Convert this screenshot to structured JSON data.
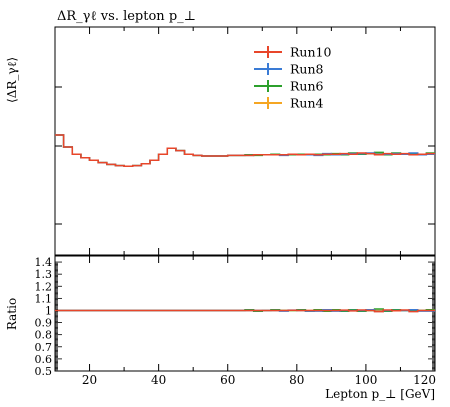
{
  "chart_data": {
    "type": "line",
    "title": "ΔR_γℓ vs. lepton p_⊥",
    "xlabel": "Lepton p_⊥ [GeV]",
    "ylabel": "⟨ΔR_γℓ⟩",
    "ratio_ylabel": "Ratio",
    "xlim": [
      10,
      120
    ],
    "x_ticks": [
      20,
      40,
      60,
      80,
      100,
      120
    ],
    "ratio_ylim": [
      0.5,
      1.45
    ],
    "ratio_ticks": [
      "1.4",
      "1.3",
      "1.2",
      "1.1",
      "1",
      "0.9",
      "0.8",
      "0.7",
      "0.6",
      "0.5"
    ],
    "legend_position": "top-right",
    "bin_edges": [
      10,
      12.5,
      15,
      17.5,
      20,
      22.5,
      25,
      27.5,
      30,
      32.5,
      35,
      37.5,
      40,
      42.5,
      45,
      47.5,
      50,
      52.5,
      55,
      57.5,
      60,
      62.5,
      65,
      67.5,
      70,
      72.5,
      75,
      77.5,
      80,
      82.5,
      85,
      87.5,
      90,
      92.5,
      95,
      97.5,
      100,
      102.5,
      105,
      107.5,
      110,
      112.5,
      115,
      117.5,
      120
    ],
    "series": [
      {
        "name": "Run10",
        "color": "#e8462a",
        "values": [
          1.0,
          0.9,
          0.84,
          0.81,
          0.79,
          0.77,
          0.755,
          0.745,
          0.74,
          0.745,
          0.76,
          0.79,
          0.84,
          0.89,
          0.87,
          0.84,
          0.83,
          0.825,
          0.825,
          0.825,
          0.83,
          0.83,
          0.83,
          0.835,
          0.835,
          0.835,
          0.835,
          0.84,
          0.835,
          0.84,
          0.835,
          0.84,
          0.84,
          0.845,
          0.84,
          0.85,
          0.845,
          0.835,
          0.845,
          0.84,
          0.845,
          0.835,
          0.84,
          0.845
        ]
      },
      {
        "name": "Run8",
        "color": "#3a7bd5",
        "values": [
          1.0,
          0.9,
          0.84,
          0.81,
          0.79,
          0.77,
          0.755,
          0.745,
          0.74,
          0.745,
          0.76,
          0.79,
          0.84,
          0.89,
          0.87,
          0.84,
          0.83,
          0.825,
          0.825,
          0.825,
          0.83,
          0.83,
          0.83,
          0.835,
          0.835,
          0.835,
          0.83,
          0.84,
          0.835,
          0.835,
          0.83,
          0.845,
          0.835,
          0.84,
          0.845,
          0.845,
          0.85,
          0.84,
          0.84,
          0.845,
          0.84,
          0.85,
          0.835,
          0.84
        ]
      },
      {
        "name": "Run6",
        "color": "#2ca02c",
        "values": [
          1.0,
          0.9,
          0.84,
          0.81,
          0.79,
          0.77,
          0.755,
          0.745,
          0.74,
          0.745,
          0.76,
          0.79,
          0.84,
          0.89,
          0.87,
          0.84,
          0.83,
          0.825,
          0.825,
          0.825,
          0.83,
          0.83,
          0.835,
          0.83,
          0.835,
          0.84,
          0.835,
          0.835,
          0.84,
          0.835,
          0.84,
          0.835,
          0.845,
          0.835,
          0.85,
          0.84,
          0.845,
          0.855,
          0.835,
          0.85,
          0.84,
          0.845,
          0.84,
          0.85
        ]
      },
      {
        "name": "Run4",
        "color": "#f5a623",
        "values": [
          1.0,
          0.9,
          0.84,
          0.81,
          0.79,
          0.77,
          0.755,
          0.745,
          0.74,
          0.745,
          0.76,
          0.79,
          0.84,
          0.89,
          0.87,
          0.84,
          0.83,
          0.825,
          0.825,
          0.825,
          0.83,
          0.83,
          0.83,
          0.835,
          0.835,
          0.835,
          0.835,
          0.835,
          0.835,
          0.84,
          0.835,
          0.84,
          0.84,
          0.84,
          0.845,
          0.845,
          0.845,
          0.845,
          0.84,
          0.845,
          0.84,
          0.845,
          0.84,
          0.845
        ]
      }
    ],
    "ratio_series": [
      {
        "name": "Run10",
        "color": "#e8462a",
        "values": [
          1,
          1,
          1,
          1,
          1,
          1,
          1,
          1,
          1,
          1,
          1,
          1,
          1,
          1,
          1,
          1,
          1,
          1,
          1,
          1,
          1,
          1,
          1,
          1,
          1,
          1,
          1,
          1.002,
          1,
          1,
          1,
          1,
          1,
          1.003,
          0.997,
          1.004,
          1,
          0.99,
          1.004,
          0.998,
          1.004,
          0.99,
          1,
          1
        ]
      },
      {
        "name": "Run8",
        "color": "#3a7bd5",
        "values": [
          1,
          1,
          1,
          1,
          1,
          1,
          1,
          1,
          1,
          1,
          1,
          1,
          1,
          1,
          1,
          1,
          1,
          1,
          1,
          1,
          1,
          1,
          1,
          1,
          1,
          1,
          0.995,
          1.003,
          1,
          0.995,
          0.995,
          1.006,
          0.995,
          1,
          1,
          1,
          1.006,
          0.993,
          1,
          1,
          1,
          1.006,
          0.995,
          0.995
        ]
      },
      {
        "name": "Run6",
        "color": "#2ca02c",
        "values": [
          1,
          1,
          1,
          1,
          1,
          1,
          1,
          1,
          1,
          1,
          1,
          1,
          1,
          1,
          1,
          1,
          1,
          1,
          1,
          1,
          1,
          1,
          1.006,
          0.994,
          1,
          1.006,
          1,
          1,
          1.006,
          0.995,
          1.006,
          0.994,
          1.006,
          0.994,
          1.006,
          0.994,
          1,
          1.012,
          0.994,
          1.006,
          1,
          1,
          1,
          1.006
        ]
      },
      {
        "name": "Run4",
        "color": "#f5a623",
        "values": [
          1,
          1,
          1,
          1,
          1,
          1,
          1,
          1,
          1,
          1,
          1,
          1,
          1,
          1,
          1,
          1,
          1,
          1,
          1,
          1,
          1,
          1,
          1,
          1,
          1,
          1,
          1,
          1,
          1,
          1,
          1,
          1,
          1,
          1,
          1,
          1,
          1,
          1,
          1,
          1,
          1,
          1,
          1,
          1
        ]
      }
    ]
  }
}
